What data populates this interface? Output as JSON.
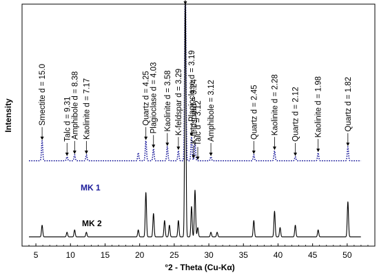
{
  "chart_data": {
    "type": "line",
    "xlabel": "°2 - Theta (Cu-Kα)",
    "ylabel": "Intensity",
    "xlim": [
      3,
      54
    ],
    "ylim": [
      0,
      1
    ],
    "x_ticks": [
      "5",
      "10",
      "15",
      "20",
      "25",
      "30",
      "35",
      "40",
      "45",
      "50"
    ],
    "x_tick_values": [
      5,
      10,
      15,
      20,
      25,
      30,
      35,
      40,
      45,
      50
    ],
    "grid": false,
    "legend": "none",
    "series": [
      {
        "name": "MK 1",
        "color": "#1a1a9a",
        "style": "dotted",
        "baseline": 0.18,
        "peaks": [
          [
            5.9,
            0.1
          ],
          [
            9.5,
            0.02
          ],
          [
            10.6,
            0.03
          ],
          [
            12.3,
            0.03
          ],
          [
            19.8,
            0.04
          ],
          [
            20.9,
            0.1
          ],
          [
            22.0,
            0.06
          ],
          [
            24.0,
            0.07
          ],
          [
            25.6,
            0.05
          ],
          [
            26.6,
            0.95
          ],
          [
            27.5,
            0.12
          ],
          [
            28.0,
            0.09
          ],
          [
            30.3,
            0.02
          ],
          [
            36.5,
            0.03
          ],
          [
            39.5,
            0.05
          ],
          [
            42.5,
            0.02
          ],
          [
            45.8,
            0.04
          ],
          [
            50.1,
            0.07
          ]
        ]
      },
      {
        "name": "MK 2",
        "color": "#000000",
        "style": "solid",
        "baseline": 0.01,
        "peaks": [
          [
            5.9,
            0.05
          ],
          [
            9.5,
            0.02
          ],
          [
            10.6,
            0.03
          ],
          [
            12.3,
            0.02
          ],
          [
            19.8,
            0.03
          ],
          [
            20.9,
            0.19
          ],
          [
            22.0,
            0.1
          ],
          [
            23.6,
            0.07
          ],
          [
            24.3,
            0.05
          ],
          [
            25.6,
            0.07
          ],
          [
            26.6,
            1.05
          ],
          [
            27.5,
            0.13
          ],
          [
            28.0,
            0.2
          ],
          [
            28.4,
            0.04
          ],
          [
            30.3,
            0.02
          ],
          [
            31.2,
            0.02
          ],
          [
            36.5,
            0.07
          ],
          [
            39.5,
            0.11
          ],
          [
            40.3,
            0.04
          ],
          [
            42.5,
            0.05
          ],
          [
            45.8,
            0.03
          ],
          [
            50.1,
            0.15
          ]
        ]
      }
    ],
    "series_labels": [
      "MK 1",
      "MK 2"
    ],
    "annotations": [
      {
        "text": "Smectite d = 15.0",
        "x": 5.9
      },
      {
        "text": "Talc d = 9.31",
        "x": 9.5
      },
      {
        "text": "Amphibole d = 8.38",
        "x": 10.6
      },
      {
        "text": "Kaolinite d = 7.17",
        "x": 12.3
      },
      {
        "text": "Quartz d = 4.25",
        "x": 20.9
      },
      {
        "text": "Plagioclase d = 4.03",
        "x": 22.0
      },
      {
        "text": "Kaolinite d = 3.58",
        "x": 24.0
      },
      {
        "text": "K-feldspar d = 3.29",
        "x": 25.6
      },
      {
        "text": "Quartz d = 3.34",
        "x": 26.6
      },
      {
        "text": "Plagioclase d = 3.19",
        "x": 27.5
      },
      {
        "text": "K-feldspard = 3.24",
        "x": 27.8
      },
      {
        "text": "Talc d = 3.12",
        "x": 28.4
      },
      {
        "text": "Amphibole = 3.12",
        "x": 30.3
      },
      {
        "text": "Quartz d = 2.45",
        "x": 36.5
      },
      {
        "text": "Kaolinite d = 2.28",
        "x": 39.5
      },
      {
        "text": "Quartz d = 2.12",
        "x": 42.5
      },
      {
        "text": "Kaolinite d = 1.98",
        "x": 45.8
      },
      {
        "text": "Quartz d = 1.82",
        "x": 50.1
      }
    ]
  }
}
